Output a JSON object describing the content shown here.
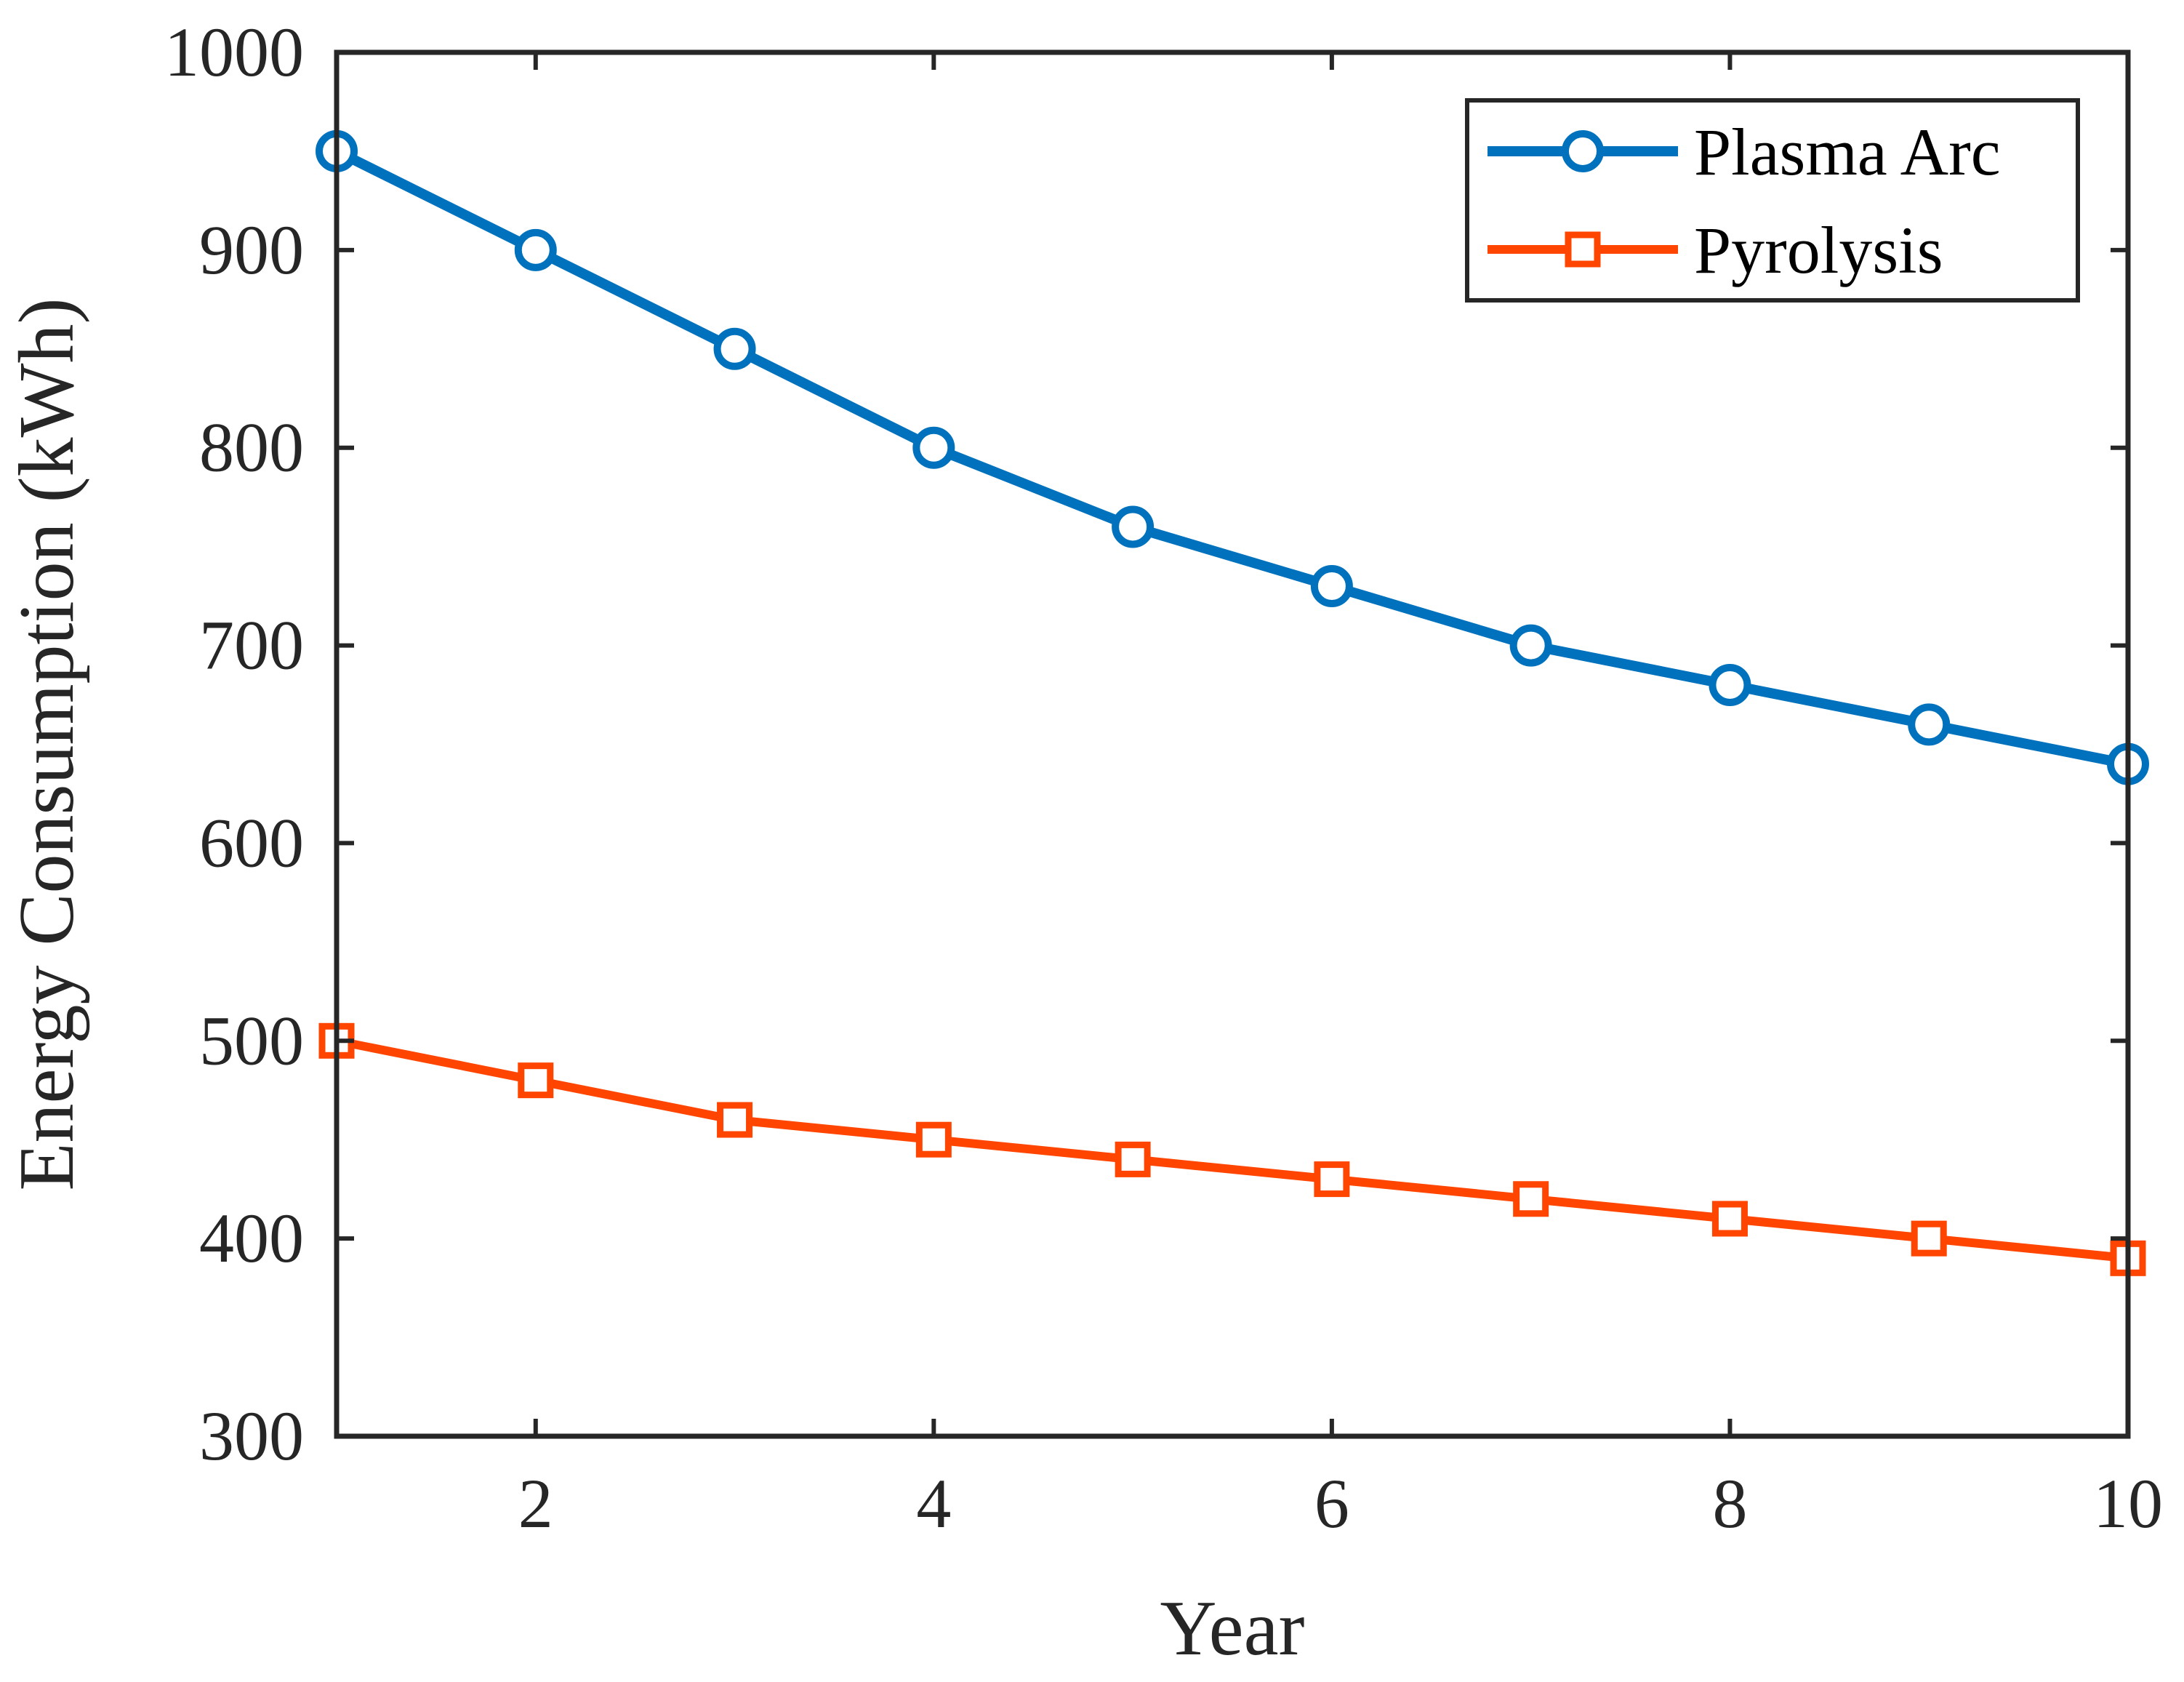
{
  "chart_data": {
    "type": "line",
    "title": "",
    "xlabel": "Year",
    "ylabel": "Energy Consumption (kWh)",
    "xlim": [
      1,
      10
    ],
    "ylim": [
      300,
      1000
    ],
    "x": [
      1,
      2,
      3,
      4,
      5,
      6,
      7,
      8,
      9,
      10
    ],
    "xticks": [
      2,
      4,
      6,
      8,
      10
    ],
    "xtick_labels": [
      "2",
      "4",
      "6",
      "8",
      "10"
    ],
    "yticks": [
      300,
      400,
      500,
      600,
      700,
      800,
      900,
      1000
    ],
    "ytick_labels": [
      "300",
      "400",
      "500",
      "600",
      "700",
      "800",
      "900",
      "1000"
    ],
    "grid": false,
    "legend_position": "top-right",
    "series": [
      {
        "name": "Plasma Arc",
        "color": "#0072BD",
        "marker": "circle",
        "values": [
          950,
          900,
          850,
          800,
          760,
          730,
          700,
          680,
          660,
          640
        ]
      },
      {
        "name": "Pyrolysis",
        "color": "#FF4500",
        "marker": "square",
        "values": [
          500,
          480,
          460,
          450,
          440,
          430,
          420,
          410,
          400,
          390
        ]
      }
    ]
  }
}
